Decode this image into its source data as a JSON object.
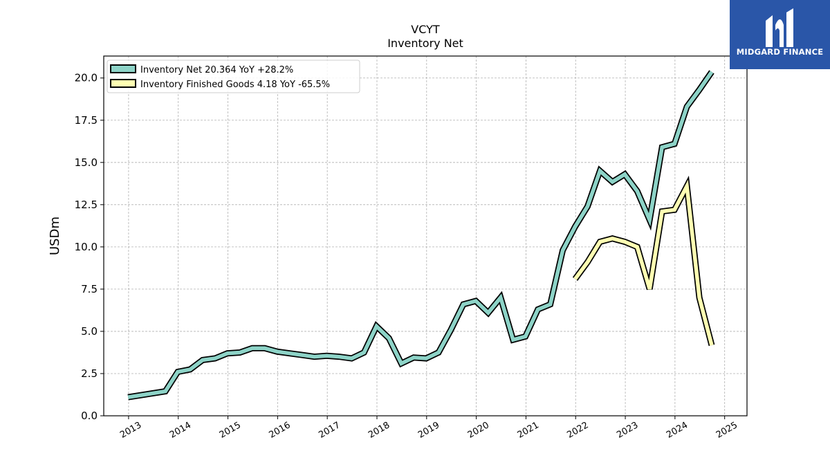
{
  "brand": {
    "name": "MIDGARD FINANCE",
    "logo_icon": "midgard-logo-icon",
    "bg_color": "#2a56a8"
  },
  "chart_data": {
    "type": "line",
    "title": "VCYT",
    "subtitle": "Inventory Net",
    "xlabel": "",
    "ylabel": "USDm",
    "xlim": [
      2012.5,
      2025.45
    ],
    "ylim": [
      0,
      21.3
    ],
    "x_ticks": [
      "2013",
      "2014",
      "2015",
      "2016",
      "2017",
      "2018",
      "2019",
      "2020",
      "2021",
      "2022",
      "2023",
      "2024",
      "2025"
    ],
    "y_ticks": [
      "0.0",
      "2.5",
      "5.0",
      "7.5",
      "10.0",
      "12.5",
      "15.0",
      "17.5",
      "20.0"
    ],
    "grid": true,
    "legend_position": "top-left",
    "series": [
      {
        "name": "Inventory Net",
        "legend": "Inventory Net  20.364 YoY +28.2%",
        "color": "#8dd3c7",
        "x": [
          2012.99,
          2013.74,
          2013.99,
          2014.24,
          2014.49,
          2014.74,
          2014.99,
          2015.24,
          2015.49,
          2015.74,
          2015.99,
          2016.24,
          2016.49,
          2016.74,
          2016.99,
          2017.24,
          2017.49,
          2017.74,
          2017.99,
          2018.24,
          2018.49,
          2018.74,
          2018.99,
          2019.24,
          2019.49,
          2019.74,
          2019.99,
          2020.24,
          2020.49,
          2020.74,
          2020.99,
          2021.24,
          2021.49,
          2021.74,
          2021.99,
          2022.24,
          2022.49,
          2022.74,
          2022.99,
          2023.24,
          2023.49,
          2023.74,
          2023.99,
          2024.24,
          2024.49,
          2024.74
        ],
        "values": [
          1.1,
          1.45,
          2.6,
          2.75,
          3.3,
          3.4,
          3.7,
          3.75,
          4.0,
          4.0,
          3.8,
          3.7,
          3.6,
          3.5,
          3.55,
          3.5,
          3.4,
          3.75,
          5.3,
          4.6,
          3.1,
          3.45,
          3.4,
          3.75,
          5.1,
          6.6,
          6.8,
          6.1,
          7.0,
          4.5,
          4.7,
          6.3,
          6.6,
          9.8,
          11.2,
          12.4,
          14.5,
          13.85,
          14.3,
          13.3,
          11.6,
          15.9,
          16.1,
          18.3,
          19.3,
          20.364
        ]
      },
      {
        "name": "Inventory Finished Goods",
        "legend": "Inventory Finished Goods  4.18 YoY -65.5%",
        "color": "#ffffb3",
        "x": [
          2021.99,
          2022.24,
          2022.49,
          2022.74,
          2022.99,
          2023.24,
          2023.49,
          2023.74,
          2023.99,
          2024.24,
          2024.49,
          2024.74
        ],
        "values": [
          8.1,
          9.1,
          10.3,
          10.5,
          10.3,
          10.0,
          7.5,
          12.1,
          12.2,
          13.6,
          7.0,
          4.18
        ]
      }
    ]
  }
}
